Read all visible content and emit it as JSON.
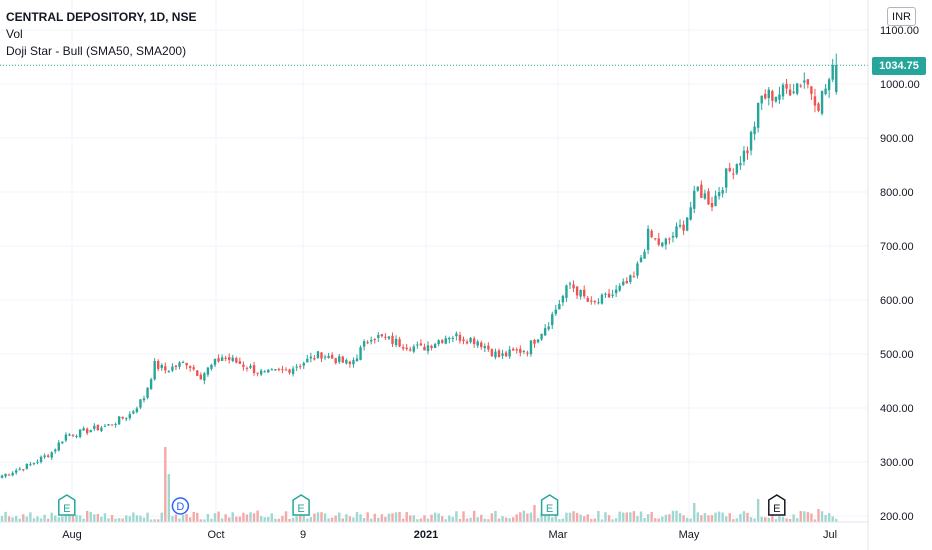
{
  "legend": {
    "title": "CENTRAL DEPOSITORY, 1D, NSE",
    "volume_label": "Vol",
    "indicator_label": "Doji Star - Bull (SMA50, SMA200)"
  },
  "currency": "INR",
  "current_price_label": "1034.75",
  "colors": {
    "up": "#26a69a",
    "down": "#ef5350",
    "up_vol": "#9fd7d1",
    "down_vol": "#f4a9a7",
    "event_e": "#26a69a",
    "event_d": "#2962ff"
  },
  "chart_data": {
    "type": "candlestick",
    "title": "CENTRAL DEPOSITORY, 1D, NSE",
    "y_ticks": [
      "200.00",
      "300.00",
      "400.00",
      "500.00",
      "600.00",
      "700.00",
      "800.00",
      "900.00",
      "1000.00",
      "1100.00"
    ],
    "x_ticks": [
      "Aug",
      "Oct",
      "9",
      "2021",
      "Mar",
      "May",
      "Jul"
    ],
    "ylim": [
      190,
      1130
    ],
    "grid": true,
    "current_price": 1034.75,
    "price_path": [
      {
        "day": 0,
        "close": 275
      },
      {
        "day": 8,
        "close": 295
      },
      {
        "day": 14,
        "close": 318
      },
      {
        "day": 18,
        "close": 350
      },
      {
        "day": 22,
        "close": 355
      },
      {
        "day": 30,
        "close": 368
      },
      {
        "day": 36,
        "close": 388
      },
      {
        "day": 40,
        "close": 420
      },
      {
        "day": 43,
        "close": 480
      },
      {
        "day": 46,
        "close": 470
      },
      {
        "day": 52,
        "close": 485
      },
      {
        "day": 56,
        "close": 460
      },
      {
        "day": 62,
        "close": 495
      },
      {
        "day": 68,
        "close": 480
      },
      {
        "day": 74,
        "close": 462
      },
      {
        "day": 80,
        "close": 470
      },
      {
        "day": 90,
        "close": 500
      },
      {
        "day": 98,
        "close": 480
      },
      {
        "day": 104,
        "close": 535
      },
      {
        "day": 112,
        "close": 520
      },
      {
        "day": 118,
        "close": 510
      },
      {
        "day": 126,
        "close": 535
      },
      {
        "day": 134,
        "close": 525
      },
      {
        "day": 140,
        "close": 495
      },
      {
        "day": 148,
        "close": 510
      },
      {
        "day": 154,
        "close": 560
      },
      {
        "day": 160,
        "close": 630
      },
      {
        "day": 166,
        "close": 590
      },
      {
        "day": 172,
        "close": 610
      },
      {
        "day": 178,
        "close": 640
      },
      {
        "day": 182,
        "close": 720
      },
      {
        "day": 186,
        "close": 700
      },
      {
        "day": 192,
        "close": 740
      },
      {
        "day": 196,
        "close": 805
      },
      {
        "day": 200,
        "close": 780
      },
      {
        "day": 204,
        "close": 830
      },
      {
        "day": 210,
        "close": 880
      },
      {
        "day": 214,
        "close": 975
      },
      {
        "day": 220,
        "close": 985
      },
      {
        "day": 226,
        "close": 1010
      },
      {
        "day": 230,
        "close": 965
      },
      {
        "day": 235,
        "close": 1034.75
      }
    ],
    "volume_spikes": [
      {
        "day": 46,
        "value": 7.5
      },
      {
        "day": 47,
        "value": 4.8
      },
      {
        "day": 18,
        "value": 2.0
      },
      {
        "day": 213,
        "value": 2.3
      },
      {
        "day": 195,
        "value": 1.9
      },
      {
        "day": 150,
        "value": 1.7
      },
      {
        "day": 230,
        "value": 1.3
      }
    ],
    "events": [
      {
        "label": "E",
        "day": 16
      },
      {
        "label": "D",
        "day": 48
      },
      {
        "label": "E",
        "day": 82
      },
      {
        "label": "E",
        "day": 152
      },
      {
        "label": "E",
        "day": 216
      }
    ]
  }
}
